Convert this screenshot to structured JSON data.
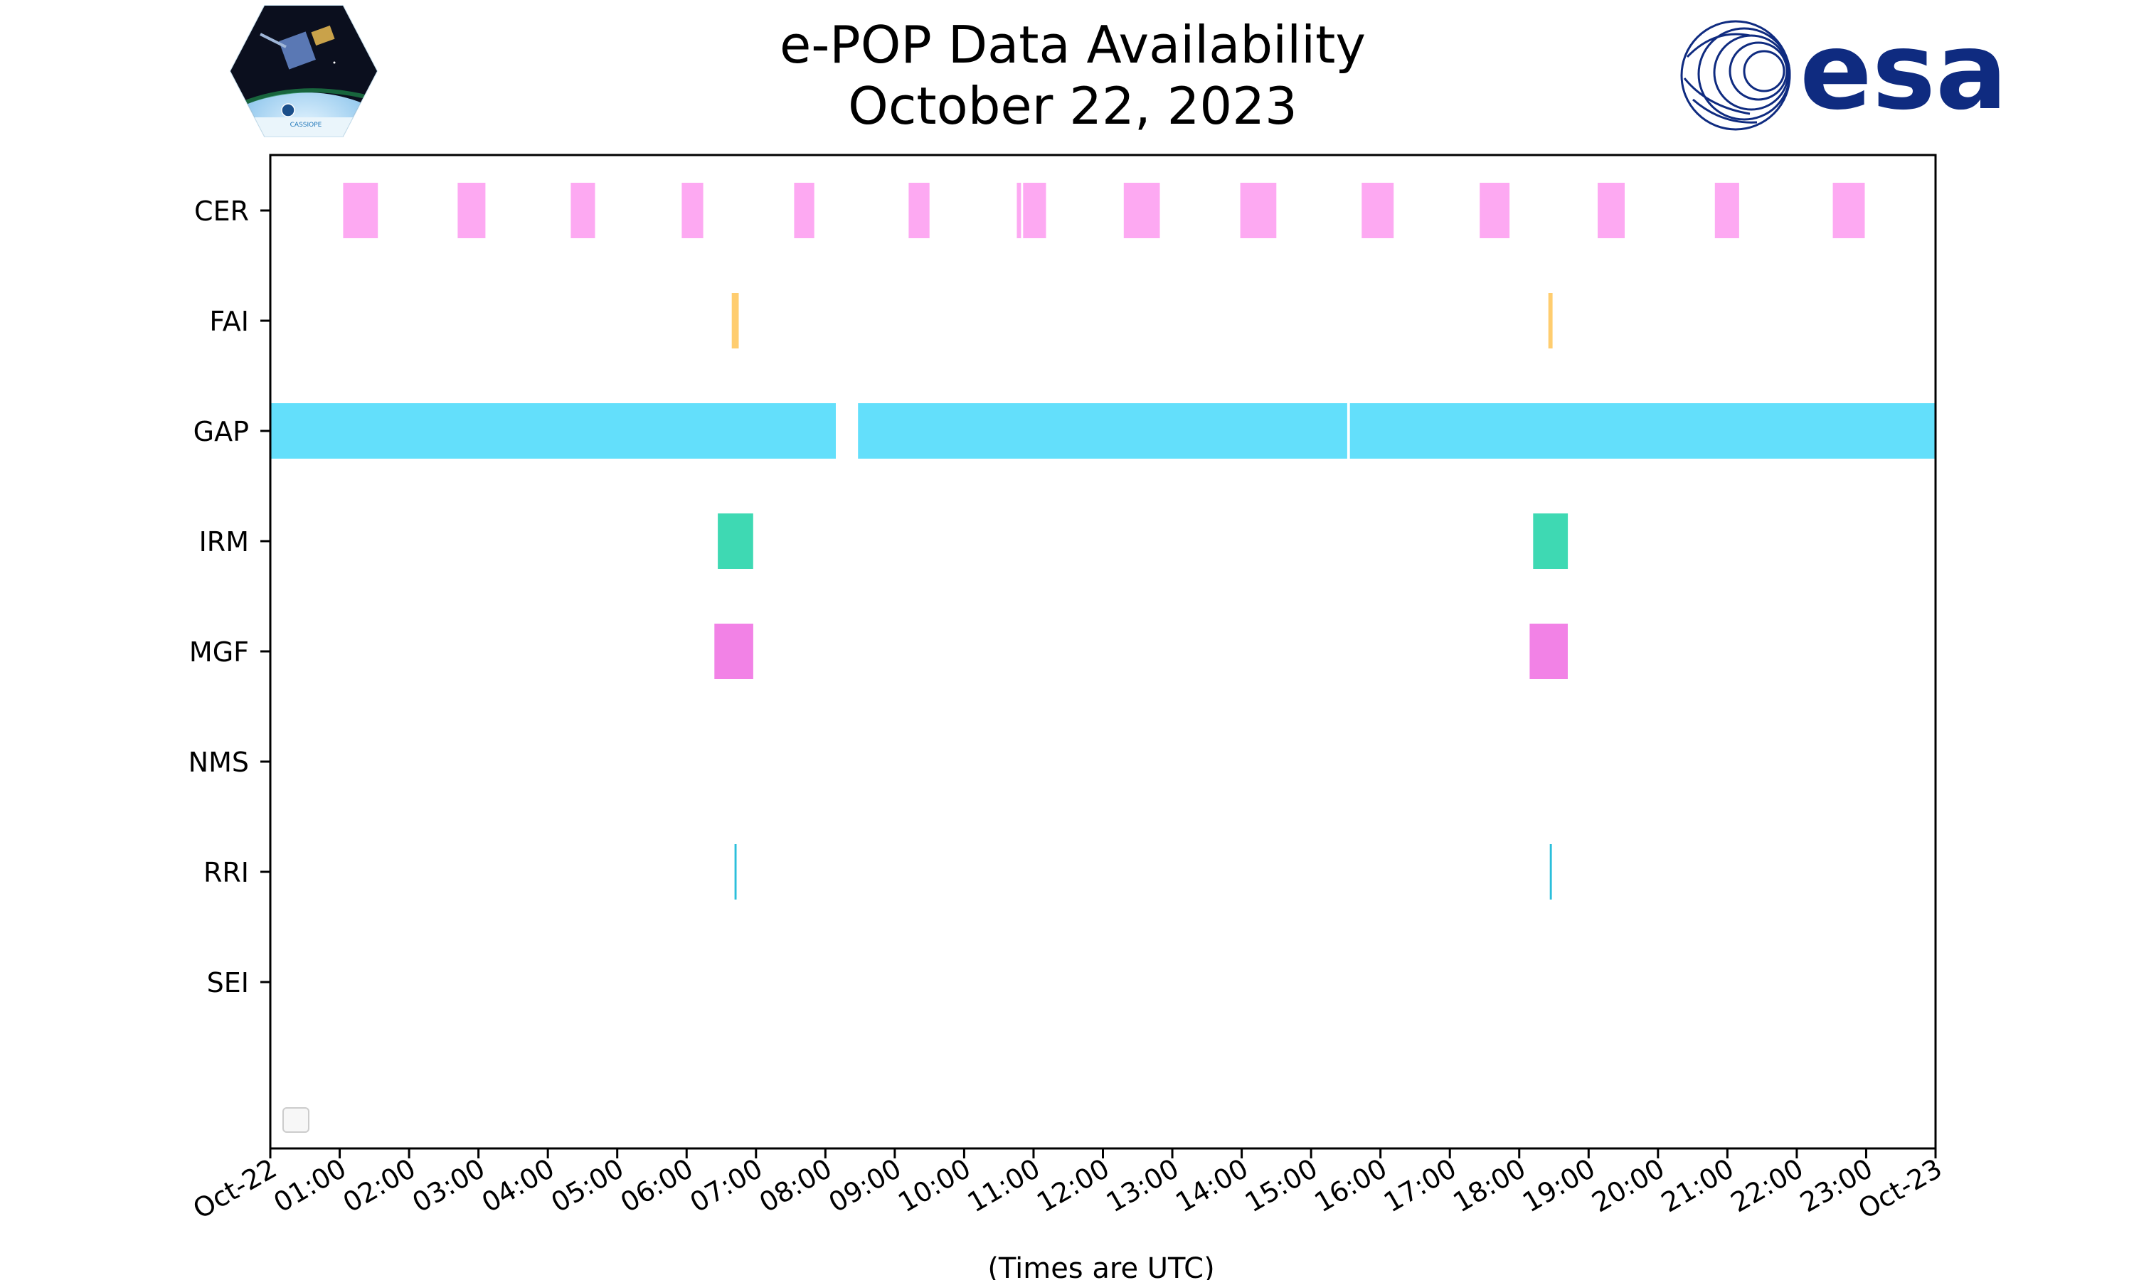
{
  "chart_data": {
    "type": "timeline",
    "title_lines": [
      "e-POP Data Availability",
      "October 22, 2023"
    ],
    "xlabel": "(Times are UTC)",
    "x_range_hours": [
      0,
      24
    ],
    "x_ticks": [
      {
        "h": 0,
        "label": "Oct-22"
      },
      {
        "h": 1,
        "label": "01:00"
      },
      {
        "h": 2,
        "label": "02:00"
      },
      {
        "h": 3,
        "label": "03:00"
      },
      {
        "h": 4,
        "label": "04:00"
      },
      {
        "h": 5,
        "label": "05:00"
      },
      {
        "h": 6,
        "label": "06:00"
      },
      {
        "h": 7,
        "label": "07:00"
      },
      {
        "h": 8,
        "label": "08:00"
      },
      {
        "h": 9,
        "label": "09:00"
      },
      {
        "h": 10,
        "label": "10:00"
      },
      {
        "h": 11,
        "label": "11:00"
      },
      {
        "h": 12,
        "label": "12:00"
      },
      {
        "h": 13,
        "label": "13:00"
      },
      {
        "h": 14,
        "label": "14:00"
      },
      {
        "h": 15,
        "label": "15:00"
      },
      {
        "h": 16,
        "label": "16:00"
      },
      {
        "h": 17,
        "label": "17:00"
      },
      {
        "h": 18,
        "label": "18:00"
      },
      {
        "h": 19,
        "label": "19:00"
      },
      {
        "h": 20,
        "label": "20:00"
      },
      {
        "h": 21,
        "label": "21:00"
      },
      {
        "h": 22,
        "label": "22:00"
      },
      {
        "h": 23,
        "label": "23:00"
      },
      {
        "h": 24,
        "label": "Oct-23"
      }
    ],
    "series": [
      {
        "name": "CER",
        "color": "#fda9f2",
        "intervals": [
          [
            1.05,
            1.55
          ],
          [
            2.7,
            3.1
          ],
          [
            4.33,
            4.68
          ],
          [
            5.93,
            6.24
          ],
          [
            7.55,
            7.84
          ],
          [
            9.2,
            9.5
          ],
          [
            10.76,
            10.82
          ],
          [
            10.85,
            11.18
          ],
          [
            12.3,
            12.82
          ],
          [
            13.98,
            14.5
          ],
          [
            15.73,
            16.19
          ],
          [
            17.43,
            17.86
          ],
          [
            19.13,
            19.52
          ],
          [
            20.82,
            21.17
          ],
          [
            22.52,
            22.98
          ]
        ]
      },
      {
        "name": "FAI",
        "color": "#ffcd6f",
        "intervals": [
          [
            6.65,
            6.75
          ],
          [
            18.42,
            18.48
          ]
        ]
      },
      {
        "name": "GAP",
        "color": "#63dffb",
        "intervals": [
          [
            0,
            8.15
          ],
          [
            8.47,
            15.52
          ],
          [
            15.56,
            24
          ]
        ]
      },
      {
        "name": "IRM",
        "color": "#3ed9b3",
        "intervals": [
          [
            6.45,
            6.96
          ],
          [
            18.2,
            18.7
          ]
        ]
      },
      {
        "name": "MGF",
        "color": "#f282e6",
        "intervals": [
          [
            6.4,
            6.96
          ],
          [
            18.15,
            18.7
          ]
        ]
      },
      {
        "name": "NMS",
        "color": "#000000",
        "intervals": []
      },
      {
        "name": "RRI",
        "color": "#2bbfdb",
        "intervals": [
          [
            6.69,
            6.72
          ],
          [
            18.44,
            18.47
          ]
        ]
      },
      {
        "name": "SEI",
        "color": "#000000",
        "intervals": []
      }
    ],
    "legend": {
      "location": "lower-left",
      "entries": []
    }
  },
  "logos": {
    "left": {
      "name": "CASSIOPE",
      "text": "CASSIOPE"
    },
    "right": {
      "name": "esa",
      "text": "esa"
    }
  }
}
